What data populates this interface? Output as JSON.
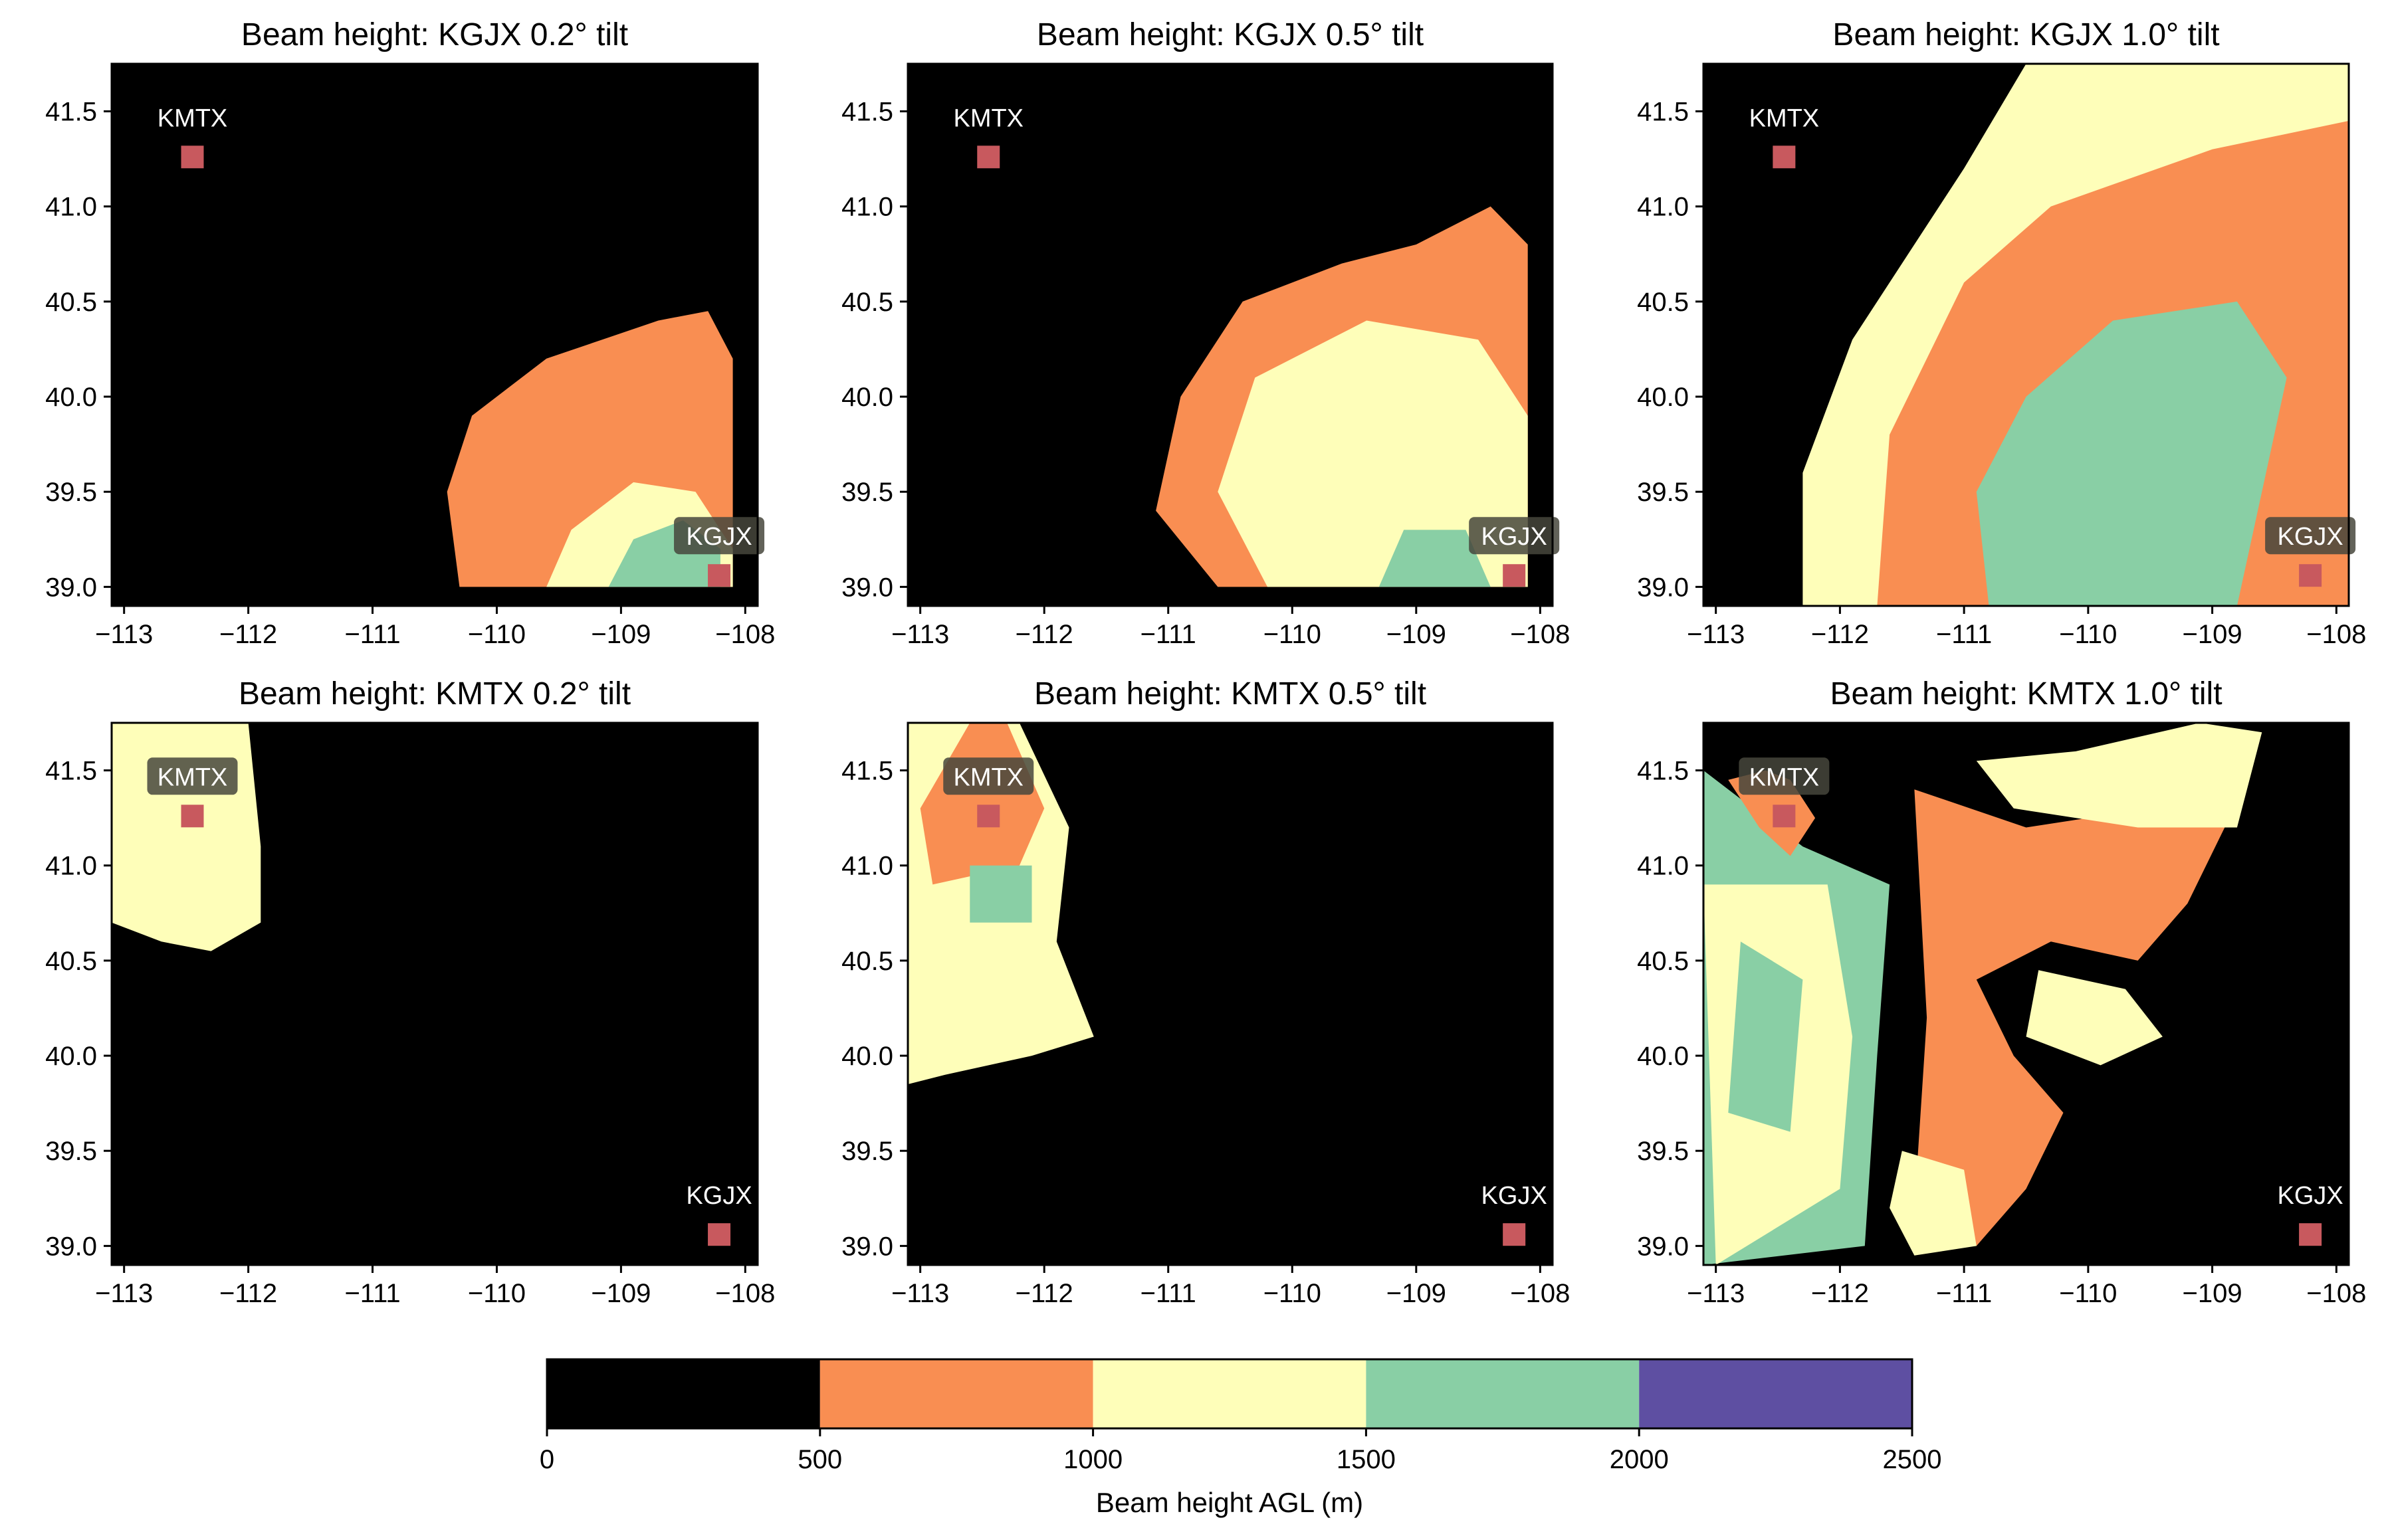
{
  "chart_data": {
    "type": "heatmap",
    "panels": [
      {
        "title": "Beam height: KGJX 0.2° tilt",
        "radar": "KGJX",
        "tilt_deg": 0.2,
        "xlim": [
          -113.1,
          -107.9
        ],
        "ylim": [
          38.9,
          41.75
        ],
        "xticks": [
          -113,
          -112,
          -111,
          -110,
          -109,
          -108
        ],
        "yticks": [
          39.0,
          39.5,
          40.0,
          40.5,
          41.0,
          41.5
        ],
        "highlighted_label": "KGJX",
        "regions": [
          {
            "color_class": "500-1000",
            "outline": [
              [
                -110.3,
                39.0
              ],
              [
                -110.4,
                39.5
              ],
              [
                -110.2,
                39.9
              ],
              [
                -109.6,
                40.2
              ],
              [
                -108.7,
                40.4
              ],
              [
                -108.3,
                40.45
              ],
              [
                -108.1,
                40.2
              ],
              [
                -108.1,
                39.0
              ]
            ]
          },
          {
            "color_class": "1000-1500",
            "outline": [
              [
                -109.6,
                39.0
              ],
              [
                -109.4,
                39.3
              ],
              [
                -108.9,
                39.55
              ],
              [
                -108.4,
                39.5
              ],
              [
                -108.1,
                39.2
              ],
              [
                -108.1,
                39.0
              ]
            ]
          },
          {
            "color_class": "1500-2000",
            "outline": [
              [
                -109.1,
                39.0
              ],
              [
                -108.9,
                39.25
              ],
              [
                -108.5,
                39.35
              ],
              [
                -108.2,
                39.2
              ],
              [
                -108.2,
                39.0
              ]
            ]
          }
        ]
      },
      {
        "title": "Beam height: KGJX 0.5° tilt",
        "radar": "KGJX",
        "tilt_deg": 0.5,
        "xlim": [
          -113.1,
          -107.9
        ],
        "ylim": [
          38.9,
          41.75
        ],
        "xticks": [
          -113,
          -112,
          -111,
          -110,
          -109,
          -108
        ],
        "yticks": [
          39.0,
          39.5,
          40.0,
          40.5,
          41.0,
          41.5
        ],
        "highlighted_label": "KGJX",
        "regions": [
          {
            "color_class": "500-1000",
            "outline": [
              [
                -110.6,
                39.0
              ],
              [
                -111.1,
                39.4
              ],
              [
                -110.9,
                40.0
              ],
              [
                -110.4,
                40.5
              ],
              [
                -109.6,
                40.7
              ],
              [
                -109.0,
                40.8
              ],
              [
                -108.4,
                41.0
              ],
              [
                -108.1,
                40.8
              ],
              [
                -108.1,
                39.0
              ]
            ]
          },
          {
            "color_class": "1000-1500",
            "outline": [
              [
                -110.2,
                39.0
              ],
              [
                -110.6,
                39.5
              ],
              [
                -110.3,
                40.1
              ],
              [
                -109.4,
                40.4
              ],
              [
                -108.5,
                40.3
              ],
              [
                -108.1,
                39.9
              ],
              [
                -108.1,
                39.0
              ]
            ]
          },
          {
            "color_class": "1500-2000",
            "outline": [
              [
                -109.3,
                39.0
              ],
              [
                -109.1,
                39.3
              ],
              [
                -108.6,
                39.3
              ],
              [
                -108.4,
                39.0
              ]
            ]
          }
        ]
      },
      {
        "title": "Beam height: KGJX 1.0° tilt",
        "radar": "KGJX",
        "tilt_deg": 1.0,
        "xlim": [
          -113.1,
          -107.9
        ],
        "ylim": [
          38.9,
          41.75
        ],
        "xticks": [
          -113,
          -112,
          -111,
          -110,
          -109,
          -108
        ],
        "yticks": [
          39.0,
          39.5,
          40.0,
          40.5,
          41.0,
          41.5
        ],
        "highlighted_label": "KGJX",
        "regions": [
          {
            "color_class": "1000-1500",
            "outline": [
              [
                -112.3,
                38.9
              ],
              [
                -112.3,
                39.6
              ],
              [
                -111.9,
                40.3
              ],
              [
                -111.4,
                40.8
              ],
              [
                -111.0,
                41.2
              ],
              [
                -110.5,
                41.75
              ],
              [
                -107.9,
                41.75
              ],
              [
                -107.9,
                38.9
              ]
            ]
          },
          {
            "color_class": "500-1000",
            "outline": [
              [
                -111.7,
                38.9
              ],
              [
                -111.6,
                39.8
              ],
              [
                -111.0,
                40.6
              ],
              [
                -110.3,
                41.0
              ],
              [
                -109.0,
                41.3
              ],
              [
                -107.9,
                41.45
              ],
              [
                -107.9,
                38.9
              ]
            ]
          },
          {
            "color_class": "1500-2000",
            "outline": [
              [
                -110.8,
                38.9
              ],
              [
                -110.9,
                39.5
              ],
              [
                -110.5,
                40.0
              ],
              [
                -109.8,
                40.4
              ],
              [
                -108.8,
                40.5
              ],
              [
                -108.4,
                40.1
              ],
              [
                -108.6,
                39.5
              ],
              [
                -108.8,
                38.9
              ]
            ]
          }
        ]
      },
      {
        "title": "Beam height: KMTX 0.2° tilt",
        "radar": "KMTX",
        "tilt_deg": 0.2,
        "xlim": [
          -113.1,
          -107.9
        ],
        "ylim": [
          38.9,
          41.75
        ],
        "xticks": [
          -113,
          -112,
          -111,
          -110,
          -109,
          -108
        ],
        "yticks": [
          39.0,
          39.5,
          40.0,
          40.5,
          41.0,
          41.5
        ],
        "highlighted_label": "KMTX",
        "regions": [
          {
            "color_class": "1000-1500",
            "outline": [
              [
                -113.1,
                41.75
              ],
              [
                -112.0,
                41.75
              ],
              [
                -111.9,
                41.1
              ],
              [
                -111.9,
                40.7
              ],
              [
                -112.3,
                40.55
              ],
              [
                -112.7,
                40.6
              ],
              [
                -113.1,
                40.7
              ]
            ]
          }
        ]
      },
      {
        "title": "Beam height: KMTX 0.5° tilt",
        "radar": "KMTX",
        "tilt_deg": 0.5,
        "xlim": [
          -113.1,
          -107.9
        ],
        "ylim": [
          38.9,
          41.75
        ],
        "xticks": [
          -113,
          -112,
          -111,
          -110,
          -109,
          -108
        ],
        "yticks": [
          39.0,
          39.5,
          40.0,
          40.5,
          41.0,
          41.5
        ],
        "highlighted_label": "KMTX",
        "regions": [
          {
            "color_class": "1000-1500",
            "outline": [
              [
                -113.1,
                41.75
              ],
              [
                -112.2,
                41.75
              ],
              [
                -111.8,
                41.2
              ],
              [
                -111.9,
                40.6
              ],
              [
                -111.6,
                40.1
              ],
              [
                -112.1,
                40.0
              ],
              [
                -112.8,
                39.9
              ],
              [
                -113.1,
                39.85
              ]
            ]
          },
          {
            "color_class": "500-1000",
            "outline": [
              [
                -112.6,
                41.75
              ],
              [
                -112.3,
                41.75
              ],
              [
                -112.0,
                41.3
              ],
              [
                -112.2,
                41.0
              ],
              [
                -112.9,
                40.9
              ],
              [
                -113.0,
                41.3
              ]
            ]
          },
          {
            "color_class": "1500-2000",
            "outline": [
              [
                -112.6,
                41.0
              ],
              [
                -112.1,
                41.0
              ],
              [
                -112.1,
                40.7
              ],
              [
                -112.6,
                40.7
              ]
            ]
          }
        ]
      },
      {
        "title": "Beam height: KMTX 1.0° tilt",
        "radar": "KMTX",
        "tilt_deg": 1.0,
        "xlim": [
          -113.1,
          -107.9
        ],
        "ylim": [
          38.9,
          41.75
        ],
        "xticks": [
          -113,
          -112,
          -111,
          -110,
          -109,
          -108
        ],
        "yticks": [
          39.0,
          39.5,
          40.0,
          40.5,
          41.0,
          41.5
        ],
        "highlighted_label": "KMTX",
        "regions": [
          {
            "color_class": "1500-2000",
            "outline": [
              [
                -113.1,
                41.5
              ],
              [
                -112.3,
                41.1
              ],
              [
                -111.6,
                40.9
              ],
              [
                -111.7,
                40.0
              ],
              [
                -111.8,
                39.0
              ],
              [
                -113.1,
                38.9
              ]
            ]
          },
          {
            "color_class": "1000-1500",
            "outline": [
              [
                -112.1,
                40.9
              ],
              [
                -111.9,
                40.1
              ],
              [
                -112.0,
                39.3
              ],
              [
                -113.0,
                38.9
              ],
              [
                -113.1,
                40.9
              ]
            ]
          },
          {
            "color_class": "1500-2000",
            "outline": [
              [
                -112.8,
                40.6
              ],
              [
                -112.3,
                40.4
              ],
              [
                -112.4,
                39.6
              ],
              [
                -112.9,
                39.7
              ]
            ]
          },
          {
            "color_class": "500-1000",
            "outline": [
              [
                -111.4,
                41.4
              ],
              [
                -110.5,
                41.2
              ],
              [
                -109.5,
                41.3
              ],
              [
                -108.9,
                41.2
              ],
              [
                -109.2,
                40.8
              ],
              [
                -109.6,
                40.5
              ],
              [
                -110.3,
                40.6
              ],
              [
                -110.9,
                40.4
              ],
              [
                -110.6,
                40.0
              ],
              [
                -110.2,
                39.7
              ],
              [
                -110.5,
                39.3
              ],
              [
                -110.9,
                39.0
              ],
              [
                -111.4,
                39.2
              ],
              [
                -111.3,
                40.2
              ]
            ]
          },
          {
            "color_class": "1000-1500",
            "outline": [
              [
                -110.9,
                41.55
              ],
              [
                -110.1,
                41.6
              ],
              [
                -109.1,
                41.75
              ],
              [
                -108.6,
                41.7
              ],
              [
                -108.8,
                41.2
              ],
              [
                -109.6,
                41.2
              ],
              [
                -110.6,
                41.3
              ]
            ]
          },
          {
            "color_class": "1000-1500",
            "outline": [
              [
                -110.4,
                40.45
              ],
              [
                -109.7,
                40.35
              ],
              [
                -109.4,
                40.1
              ],
              [
                -109.9,
                39.95
              ],
              [
                -110.5,
                40.1
              ]
            ]
          },
          {
            "color_class": "1000-1500",
            "outline": [
              [
                -111.5,
                39.5
              ],
              [
                -111.0,
                39.4
              ],
              [
                -110.9,
                39.0
              ],
              [
                -111.4,
                38.95
              ],
              [
                -111.6,
                39.2
              ]
            ]
          },
          {
            "color_class": "500-1000",
            "outline": [
              [
                -112.9,
                41.45
              ],
              [
                -112.65,
                41.2
              ],
              [
                -112.4,
                41.05
              ],
              [
                -112.2,
                41.25
              ],
              [
                -112.4,
                41.45
              ],
              [
                -112.6,
                41.5
              ]
            ]
          }
        ]
      }
    ],
    "stations": [
      {
        "name": "KMTX",
        "lon": -112.45,
        "lat": 41.26
      },
      {
        "name": "KGJX",
        "lon": -108.21,
        "lat": 39.06
      }
    ],
    "colorbar": {
      "label": "Beam height AGL (m)",
      "bounds": [
        0,
        500,
        1000,
        1500,
        2000,
        2500
      ],
      "tick_labels": [
        "0",
        "500",
        "1000",
        "1500",
        "2000",
        "2500"
      ],
      "classes": [
        {
          "range": "0-500",
          "color": "#000000"
        },
        {
          "range": "500-1000",
          "color": "#f98e52"
        },
        {
          "range": "1000-1500",
          "color": "#fefeb9"
        },
        {
          "range": "1500-2000",
          "color": "#89cfa5"
        },
        {
          "range": "2000-2500",
          "color": "#5e4fa2"
        }
      ]
    },
    "station_marker_color": "#c8595e"
  }
}
